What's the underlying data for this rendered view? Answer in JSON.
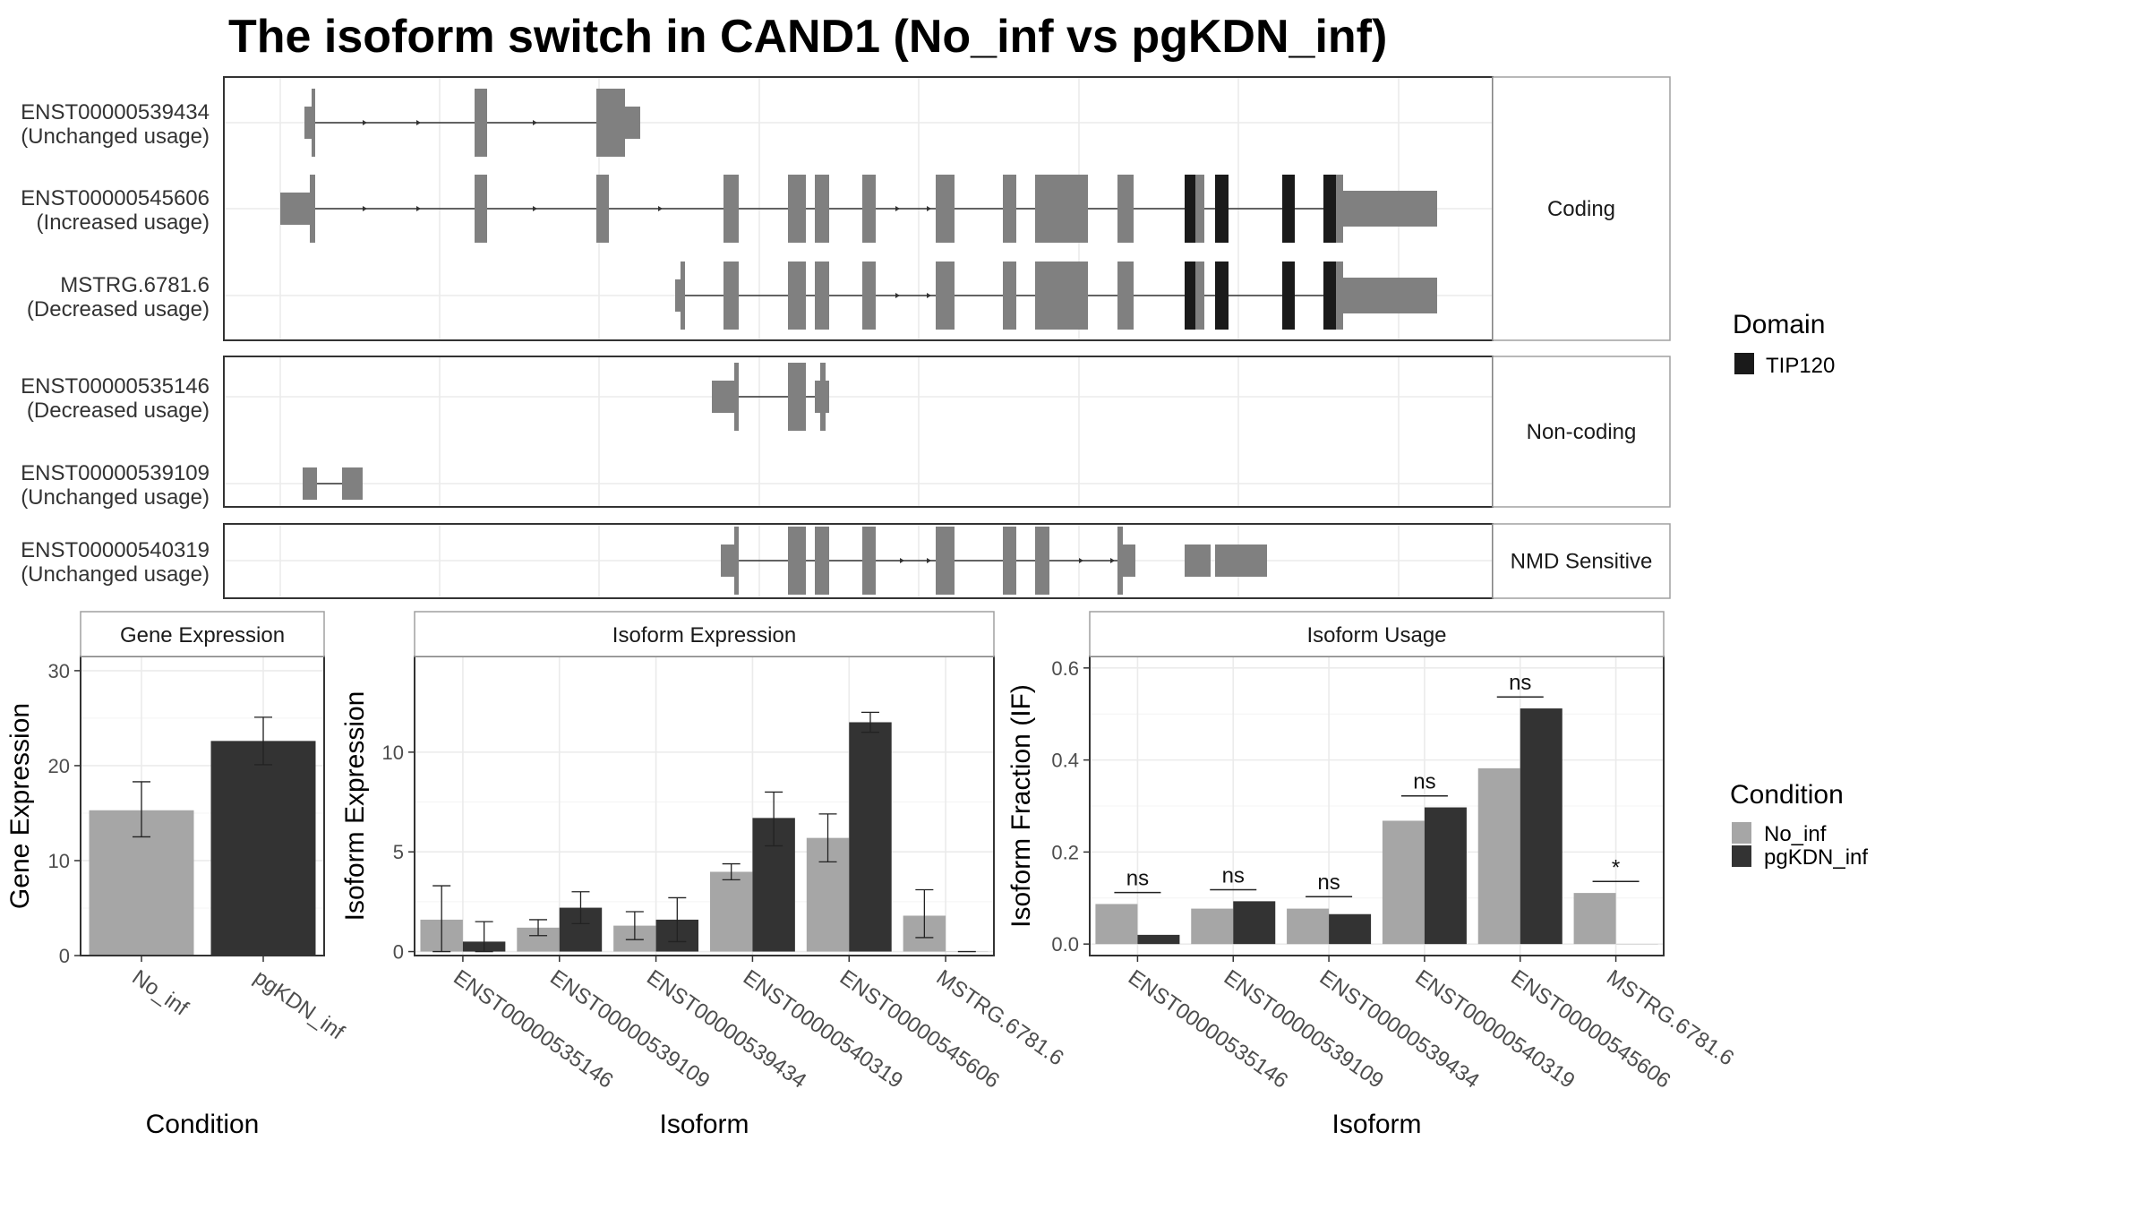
{
  "title": "The isoform switch in CAND1 (No_inf vs pgKDN_inf)",
  "colors": {
    "no_inf": "#a6a6a6",
    "pgkdn_inf": "#333333",
    "exon": "#808080",
    "domain": "#1a1a1a",
    "panel_border": "#333333",
    "strip_fill": "#ffffff",
    "grid": "#ebebeb"
  },
  "structure": {
    "facets": [
      {
        "label": "Coding",
        "isoforms": [
          {
            "id": "ENST00000539434",
            "usage": "(Unchanged usage)"
          },
          {
            "id": "ENST00000545606",
            "usage": "(Increased usage)"
          },
          {
            "id": "MSTRG.6781.6",
            "usage": "(Decreased usage)"
          }
        ]
      },
      {
        "label": "Non-coding",
        "isoforms": [
          {
            "id": "ENST00000535146",
            "usage": "(Decreased usage)"
          },
          {
            "id": "ENST00000539109",
            "usage": "(Unchanged usage)"
          }
        ]
      },
      {
        "label": "NMD Sensitive",
        "isoforms": [
          {
            "id": "ENST00000540319",
            "usage": "(Unchanged usage)"
          }
        ]
      }
    ],
    "legend": {
      "title": "Domain",
      "entries": [
        {
          "label": "TIP120",
          "color": "#1a1a1a"
        }
      ]
    }
  },
  "chart_data": [
    {
      "type": "bar",
      "panel": "Gene Expression",
      "categories": [
        "No_inf",
        "pgKDN_inf"
      ],
      "values": [
        15.3,
        22.6
      ],
      "error_low": [
        12.5,
        20.1
      ],
      "error_high": [
        18.3,
        25.1
      ],
      "xlabel": "Condition",
      "ylabel": "Gene Expression",
      "ylim": [
        0,
        31.5
      ],
      "yticks": [
        0,
        10,
        20,
        30
      ]
    },
    {
      "type": "bar",
      "panel": "Isoform Expression",
      "categories": [
        "ENST00000535146",
        "ENST00000539109",
        "ENST00000539434",
        "ENST00000540319",
        "ENST00000545606",
        "MSTRG.6781.6"
      ],
      "series": [
        {
          "name": "No_inf",
          "values": [
            1.6,
            1.2,
            1.3,
            4.0,
            5.7,
            1.8
          ],
          "error_low": [
            0,
            0.8,
            0.6,
            3.6,
            4.5,
            0.7
          ],
          "error_high": [
            3.3,
            1.6,
            2.0,
            4.4,
            6.9,
            3.1
          ]
        },
        {
          "name": "pgKDN_inf",
          "values": [
            0.5,
            2.2,
            1.6,
            6.7,
            11.5,
            0.0
          ],
          "error_low": [
            0,
            1.4,
            0.5,
            5.3,
            11.0,
            0.0
          ],
          "error_high": [
            1.5,
            3.0,
            2.7,
            8.0,
            12.0,
            0.0
          ]
        }
      ],
      "xlabel": "Isoform",
      "ylabel": "Isoform Expression",
      "ylim": [
        -0.2,
        14.8
      ],
      "yticks": [
        0,
        5,
        10
      ]
    },
    {
      "type": "bar",
      "panel": "Isoform Usage",
      "categories": [
        "ENST00000535146",
        "ENST00000539109",
        "ENST00000539434",
        "ENST00000540319",
        "ENST00000545606",
        "MSTRG.6781.6"
      ],
      "series": [
        {
          "name": "No_inf",
          "values": [
            0.087,
            0.077,
            0.077,
            0.268,
            0.382,
            0.111
          ]
        },
        {
          "name": "pgKDN_inf",
          "values": [
            0.02,
            0.093,
            0.065,
            0.297,
            0.512,
            0.0
          ]
        }
      ],
      "significance": [
        {
          "label": "ns",
          "y": 0.112
        },
        {
          "label": "ns",
          "y": 0.118
        },
        {
          "label": "ns",
          "y": 0.103
        },
        {
          "label": "ns",
          "y": 0.322
        },
        {
          "label": "ns",
          "y": 0.537
        },
        {
          "label": "*",
          "y": 0.136
        }
      ],
      "xlabel": "Isoform",
      "ylabel": "Isoform Fraction (IF)",
      "ylim": [
        -0.025,
        0.625
      ],
      "yticks": [
        "0.0",
        "0.2",
        "0.4",
        "0.6"
      ]
    }
  ],
  "condition_legend": {
    "title": "Condition",
    "entries": [
      {
        "label": "No_inf",
        "color": "#a6a6a6"
      },
      {
        "label": "pgKDN_inf",
        "color": "#333333"
      }
    ]
  }
}
